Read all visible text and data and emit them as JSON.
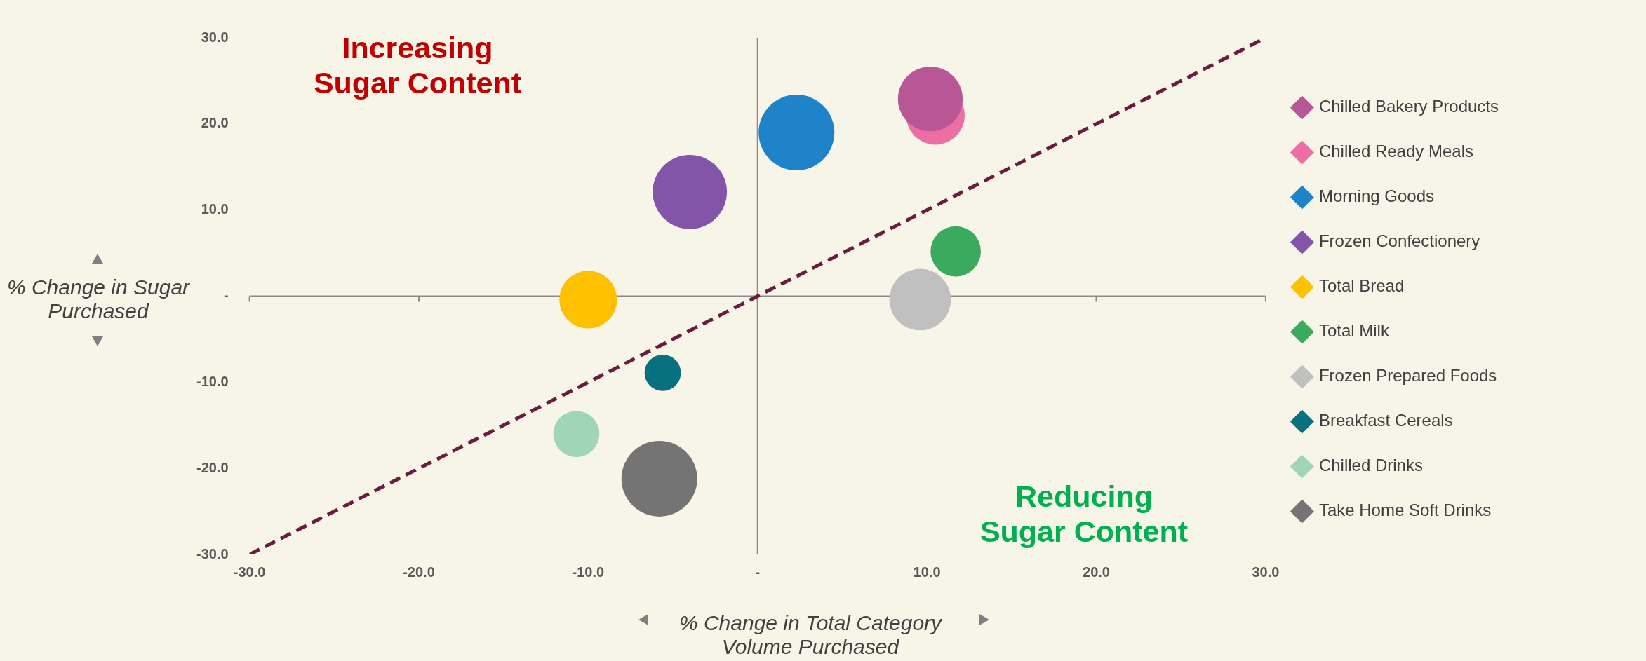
{
  "chart_data": {
    "type": "bubble",
    "xlabel": "% Change in Total Category Volume Purchased",
    "ylabel": "% Change in Sugar Purchased",
    "annotations": [
      "Increasing Sugar Content",
      "Reducing Sugar Content"
    ],
    "xlim": [
      -30,
      30
    ],
    "ylim": [
      -30,
      30
    ],
    "xticks": [
      {
        "value": -30,
        "label": "-30.0"
      },
      {
        "value": -20,
        "label": "-20.0"
      },
      {
        "value": -10,
        "label": "-10.0"
      },
      {
        "value": 0,
        "label": "-"
      },
      {
        "value": 10,
        "label": "10.0"
      },
      {
        "value": 20,
        "label": "20.0"
      },
      {
        "value": 30,
        "label": "30.0"
      }
    ],
    "yticks": [
      {
        "value": -30,
        "label": "-30.0"
      },
      {
        "value": -20,
        "label": "-20.0"
      },
      {
        "value": -10,
        "label": "-10.0"
      },
      {
        "value": 0,
        "label": "-"
      },
      {
        "value": 10,
        "label": "10.0"
      },
      {
        "value": 20,
        "label": "20.0"
      },
      {
        "value": 30,
        "label": "30.0"
      }
    ],
    "legend": "right",
    "series": [
      {
        "name": "Chilled Bakery Products",
        "color": "#b85696",
        "x": [
          10.2
        ],
        "values": [
          22.9
        ],
        "sizes": [
          0.73
        ]
      },
      {
        "name": "Chilled Ready Meals",
        "color": "#ec6ea2",
        "x": [
          10.5
        ],
        "values": [
          21.0
        ],
        "sizes": [
          0.6
        ]
      },
      {
        "name": "Morning Goods",
        "color": "#1e83c8",
        "x": [
          2.3
        ],
        "values": [
          19.0
        ],
        "sizes": [
          1
        ]
      },
      {
        "name": "Frozen Confectionery",
        "color": "#8454a8",
        "x": [
          -4.0
        ],
        "values": [
          12.1
        ],
        "sizes": [
          0.96
        ]
      },
      {
        "name": "Total Bread",
        "color": "#ffc000",
        "x": [
          -10.0
        ],
        "values": [
          -0.4
        ],
        "sizes": [
          0.58
        ]
      },
      {
        "name": "Total Milk",
        "color": "#3aaa5e",
        "x": [
          11.7
        ],
        "values": [
          5.2
        ],
        "sizes": [
          0.44
        ]
      },
      {
        "name": "Frozen Prepared Foods",
        "color": "#c0c0c0",
        "x": [
          9.6
        ],
        "values": [
          -0.4
        ],
        "sizes": [
          0.66
        ]
      },
      {
        "name": "Breakfast Cereals",
        "color": "#08707e",
        "x": [
          -5.6
        ],
        "values": [
          -8.9
        ],
        "sizes": [
          0.23
        ]
      },
      {
        "name": "Chilled Drinks",
        "color": "#9fd6b8",
        "x": [
          -10.7
        ],
        "values": [
          -16.0
        ],
        "sizes": [
          0.37
        ]
      },
      {
        "name": "Take Home Soft Drinks",
        "color": "#747474",
        "x": [
          -5.8
        ],
        "values": [
          -21.2
        ],
        "sizes": [
          1
        ]
      },
      {
        "type": "line",
        "color": "#6d1a3f",
        "x": [
          -30,
          30
        ],
        "values": [
          -30,
          30
        ],
        "line_style": "dashed"
      }
    ]
  }
}
